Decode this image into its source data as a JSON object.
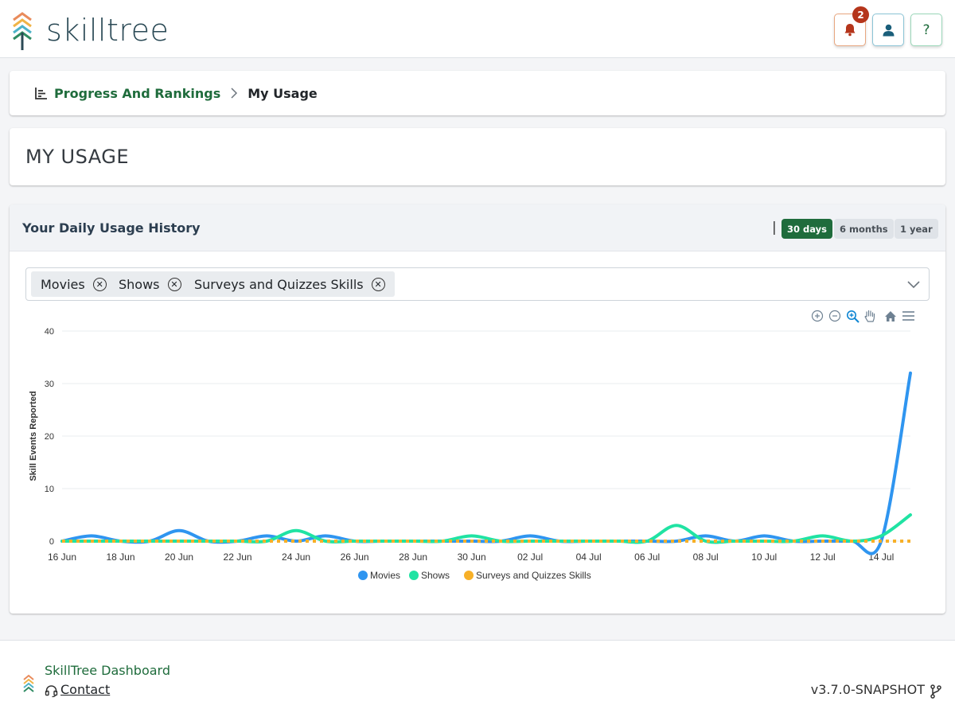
{
  "header": {
    "logo_text": "skilltree",
    "notification_count": "2",
    "help_label": "?"
  },
  "breadcrumb": {
    "parent": "Progress And Rankings",
    "separator": ">",
    "current": "My Usage"
  },
  "page_title": "MY USAGE",
  "usage_card": {
    "title": "Your Daily Usage History",
    "separator": "|",
    "ranges": [
      "30 days",
      "6 months",
      "1 year"
    ],
    "selected_range": "30 days",
    "selected_projects": [
      "Movies",
      "Shows",
      "Surveys and Quizzes Skills"
    ]
  },
  "colors": {
    "brand_green": "#1f6c3c",
    "movies": "#2f95f0",
    "shows": "#20e3a3",
    "surveys": "#f7b028",
    "badge": "#b5351b"
  },
  "chart_data": {
    "type": "line",
    "ylabel": "Skill Events Reported",
    "ylim": [
      0,
      40
    ],
    "yticks": [
      0,
      10,
      20,
      30,
      40
    ],
    "x_ticks": [
      "16 Jun",
      "18 Jun",
      "20 Jun",
      "22 Jun",
      "24 Jun",
      "26 Jun",
      "28 Jun",
      "30 Jun",
      "02 Jul",
      "04 Jul",
      "06 Jul",
      "08 Jul",
      "10 Jul",
      "12 Jul",
      "14 Jul"
    ],
    "x": [
      "16 Jun",
      "17 Jun",
      "18 Jun",
      "19 Jun",
      "20 Jun",
      "21 Jun",
      "22 Jun",
      "23 Jun",
      "24 Jun",
      "25 Jun",
      "26 Jun",
      "27 Jun",
      "28 Jun",
      "29 Jun",
      "30 Jun",
      "01 Jul",
      "02 Jul",
      "03 Jul",
      "04 Jul",
      "05 Jul",
      "06 Jul",
      "07 Jul",
      "08 Jul",
      "09 Jul",
      "10 Jul",
      "11 Jul",
      "12 Jul",
      "13 Jul",
      "14 Jul",
      "15 Jul"
    ],
    "series": [
      {
        "name": "Movies",
        "values": [
          0,
          1,
          0,
          0,
          2,
          0,
          0,
          1,
          0,
          1,
          0,
          0,
          0,
          0,
          0,
          0,
          1,
          0,
          0,
          0,
          0,
          0,
          1,
          0,
          1,
          0,
          0,
          0,
          0,
          32
        ]
      },
      {
        "name": "Shows",
        "values": [
          0,
          0,
          0,
          0,
          0,
          0,
          0,
          0,
          2,
          0,
          0,
          0,
          0,
          0,
          1,
          0,
          0,
          0,
          0,
          0,
          0,
          3,
          0,
          0,
          0,
          0,
          1,
          0,
          1,
          5
        ]
      },
      {
        "name": "Surveys and Quizzes Skills",
        "values": [
          0,
          0,
          0,
          0,
          0,
          0,
          0,
          0,
          0,
          0,
          0,
          0,
          0,
          0,
          0,
          0,
          0,
          0,
          0,
          0,
          0,
          0,
          0,
          0,
          0,
          0,
          0,
          0,
          0,
          0
        ]
      }
    ],
    "legend_position": "bottom-center",
    "grid": true
  },
  "footer": {
    "title": "SkillTree Dashboard",
    "contact": "Contact",
    "version": "v3.7.0-SNAPSHOT"
  }
}
